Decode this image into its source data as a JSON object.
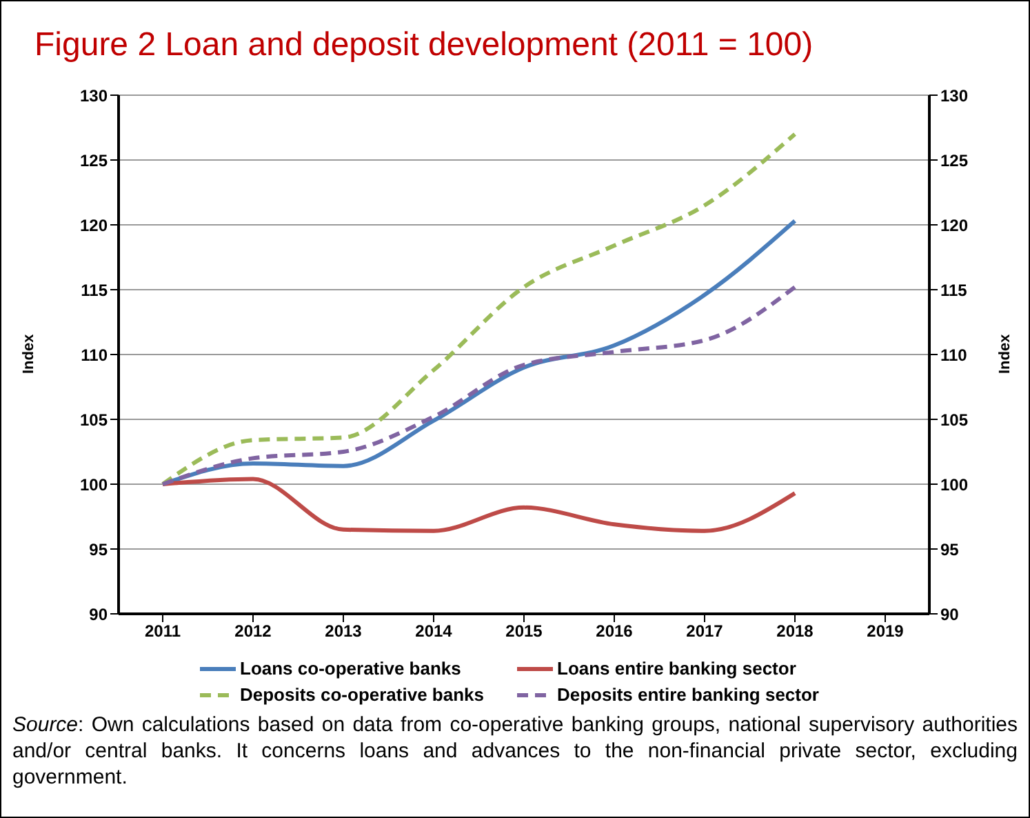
{
  "chart_data": {
    "type": "line",
    "title": "Figure 2 Loan and deposit development (2011 = 100)",
    "ylabel": "Index",
    "y2label": "Index",
    "categories": [
      "2011",
      "2012",
      "2013",
      "2014",
      "2015",
      "2016",
      "2017",
      "2018",
      "2019"
    ],
    "series": [
      {
        "name": "Loans co-operative banks",
        "color": "#4a7ebb",
        "line_style": "solid",
        "values": [
          100,
          101.6,
          101.4,
          104.9,
          109.0,
          110.7,
          114.6,
          120.3,
          null
        ]
      },
      {
        "name": "Loans entire banking sector",
        "color": "#be4b48",
        "line_style": "solid",
        "values": [
          100,
          100.4,
          96.5,
          96.4,
          98.2,
          96.9,
          96.4,
          99.3,
          null
        ]
      },
      {
        "name": "Deposits co-operative banks",
        "color": "#9bbb59",
        "line_style": "dashed",
        "values": [
          100,
          103.4,
          103.6,
          108.8,
          115.2,
          118.4,
          121.5,
          127.0,
          null
        ]
      },
      {
        "name": "Deposits entire banking sector",
        "color": "#8064a2",
        "line_style": "dashed",
        "values": [
          100,
          102.0,
          102.5,
          105.2,
          109.2,
          110.2,
          111.1,
          115.2,
          null
        ]
      }
    ],
    "ylim": [
      90,
      130
    ],
    "yticks": [
      90,
      95,
      100,
      105,
      110,
      115,
      120,
      125,
      130
    ],
    "y2lim": [
      90,
      130
    ],
    "y2ticks": [
      90,
      95,
      100,
      105,
      110,
      115,
      120,
      125,
      130
    ],
    "grid": "y",
    "legend": "bottom",
    "marker": "none",
    "annotations": [
      "Source: Own calculations based on data from co-operative banking groups, national supervisory authorities and/or central banks. It concerns loans and advances to the non-financial private sector, excluding government."
    ]
  }
}
